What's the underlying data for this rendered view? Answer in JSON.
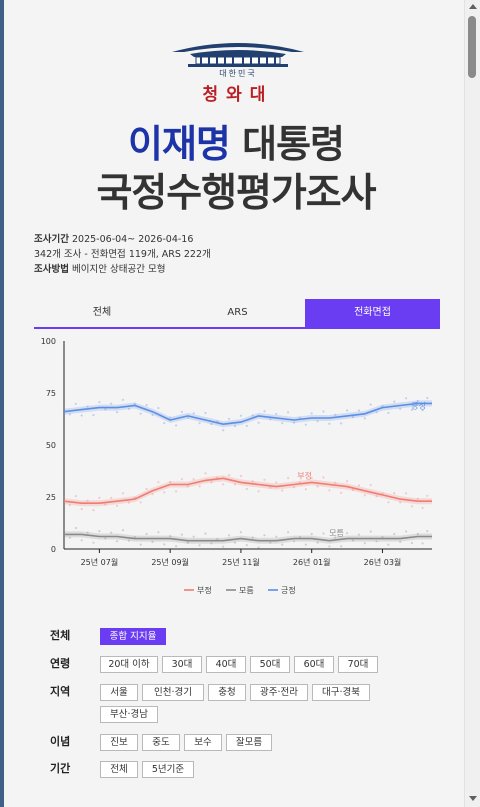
{
  "logo": {
    "subtitle": "대한민국",
    "name": "청와대"
  },
  "title": {
    "line1_name": "이재명",
    "line1_rest": " 대통령",
    "line2": "국정수행평가조사"
  },
  "meta": {
    "period_label": "조사기간",
    "period_value": "2025-06-04~ 2026-04-16",
    "count_text": "342개 조사 - 전화면접 119개, ARS 222개",
    "method_label": "조사방법",
    "method_value": "베이지안 상태공간 모형"
  },
  "tabs": [
    {
      "label": "전체"
    },
    {
      "label": "ARS"
    },
    {
      "label": "전화면접",
      "active": true
    }
  ],
  "chart_data": {
    "type": "line",
    "ylim": [
      0,
      100
    ],
    "y_ticks": [
      "0",
      "25",
      "50",
      "75",
      "100"
    ],
    "x_ticks": [
      "25년 07월",
      "25년 09월",
      "25년 11월",
      "26년 01월",
      "26년 03월"
    ],
    "x_tick_months": [
      1,
      3,
      5,
      7,
      9
    ],
    "x_range_months": [
      0,
      10.4
    ],
    "x_months": [
      0,
      0.5,
      1,
      1.5,
      2,
      2.5,
      3,
      3.5,
      4,
      4.5,
      5,
      5.5,
      6,
      6.5,
      7,
      7.5,
      8,
      8.5,
      9,
      9.5,
      10,
      10.4
    ],
    "series": [
      {
        "name": "긍정",
        "color": "#5b8ee6",
        "values": [
          66,
          67,
          68,
          68,
          69,
          66,
          62,
          64,
          62,
          60,
          61,
          64,
          63,
          62,
          63,
          63,
          64,
          65,
          68,
          69,
          70,
          70
        ]
      },
      {
        "name": "부정",
        "color": "#f07c72",
        "values": [
          23,
          22,
          22,
          23,
          24,
          28,
          31,
          31,
          33,
          34,
          32,
          31,
          30,
          31,
          32,
          31,
          30,
          28,
          26,
          24,
          23,
          23
        ]
      },
      {
        "name": "모름",
        "color": "#8a8a8a",
        "values": [
          7,
          7,
          6,
          6,
          5,
          5,
          5,
          4,
          4,
          4,
          5,
          4,
          4,
          5,
          5,
          4,
          5,
          5,
          5,
          5,
          6,
          6
        ]
      }
    ],
    "legend": [
      {
        "name": "부정",
        "color": "#f07c72"
      },
      {
        "name": "모름",
        "color": "#8a8a8a"
      },
      {
        "name": "긍정",
        "color": "#5b8ee6"
      }
    ],
    "legend_position": "bottom",
    "grid": false
  },
  "filters": {
    "all_label": "전체",
    "all_chip": "종합 지지율",
    "age_label": "연령",
    "age": [
      "20대 이하",
      "30대",
      "40대",
      "50대",
      "60대",
      "70대"
    ],
    "region_label": "지역",
    "region": [
      "서울",
      "인천·경기",
      "충청",
      "광주·전라",
      "대구·경북",
      "부산·경남"
    ],
    "ideology_label": "이념",
    "ideology": [
      "진보",
      "중도",
      "보수",
      "잘모름"
    ],
    "period_label": "기간",
    "period": [
      "전체",
      "5년기준"
    ]
  }
}
